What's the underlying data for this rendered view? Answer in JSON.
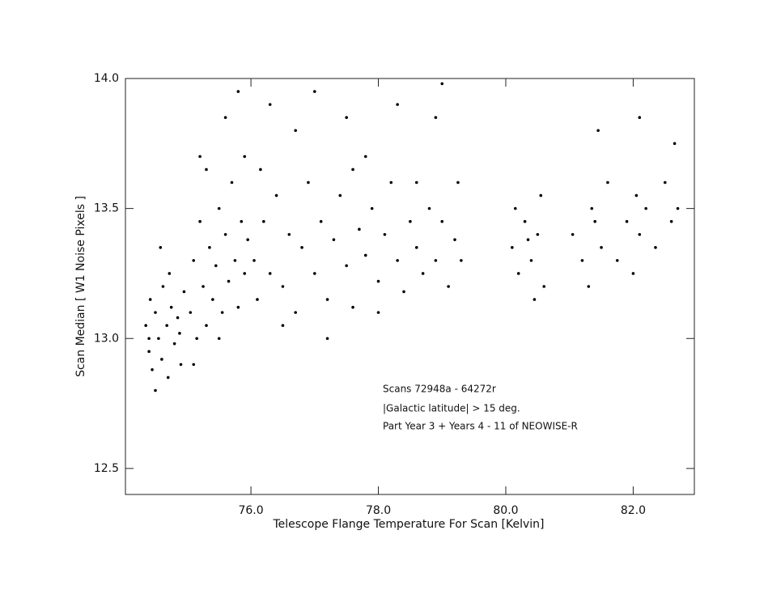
{
  "chart_data": {
    "type": "scatter",
    "x_label": "Telescope Flange Temperature For Scan [Kelvin]",
    "y_label": "Scan Median [ W1 Noise Pixels ]",
    "annotations": [
      "Scans 72948a - 64272r",
      "|Galactic latitude| > 15 deg.",
      "Part Year 3 + Years 4 - 11 of NEOWISE-R"
    ],
    "color": "#000000",
    "xlim": [
      74.03,
      82.96
    ],
    "ylim": [
      12.4,
      14.0
    ],
    "xticks": [
      {
        "value": 76,
        "label": "76.0"
      },
      {
        "value": 78,
        "label": "78.0"
      },
      {
        "value": 80,
        "label": "80.0"
      },
      {
        "value": 82,
        "label": "82.0"
      }
    ],
    "yticks": [
      {
        "value": 12.5,
        "label": "12.5"
      },
      {
        "value": 13,
        "label": "13.0"
      },
      {
        "value": 13.5,
        "label": "13.5"
      },
      {
        "value": 14,
        "label": "14.0"
      }
    ],
    "x": [
      74.35,
      74.4,
      74.42,
      74.45,
      74.5,
      74.55,
      74.6,
      74.62,
      74.68,
      74.7,
      74.75,
      74.8,
      74.85,
      74.9,
      74.95,
      74.5,
      74.58,
      74.72,
      74.88,
      74.4,
      75.05,
      75.1,
      75.15,
      75.2,
      75.25,
      75.3,
      75.35,
      75.4,
      75.45,
      75.5,
      75.55,
      75.6,
      75.65,
      75.7,
      75.75,
      75.8,
      75.85,
      75.9,
      75.95,
      75.1,
      75.3,
      75.6,
      75.8,
      75.2,
      75.5,
      75.9,
      76.05,
      76.1,
      76.2,
      76.3,
      76.4,
      76.5,
      76.6,
      76.7,
      76.8,
      76.9,
      77.0,
      77.1,
      77.2,
      77.3,
      77.4,
      77.5,
      77.6,
      77.7,
      77.8,
      77.9,
      78.0,
      78.1,
      78.2,
      78.3,
      78.4,
      78.5,
      78.6,
      78.7,
      78.8,
      78.9,
      79.0,
      79.1,
      79.2,
      79.3,
      76.3,
      76.7,
      77.0,
      77.5,
      77.8,
      78.3,
      78.9,
      79.0,
      76.5,
      77.2,
      78.0,
      76.15,
      77.6,
      78.6,
      79.25,
      80.1,
      80.2,
      80.3,
      80.4,
      80.5,
      80.6,
      80.15,
      80.45,
      80.55,
      80.35,
      81.05,
      81.2,
      81.35,
      81.4,
      81.5,
      81.6,
      81.75,
      81.9,
      82.05,
      82.1,
      82.2,
      82.35,
      82.5,
      82.6,
      82.7,
      81.45,
      82.1,
      82.65,
      81.3,
      82.0
    ],
    "values": [
      13.05,
      12.95,
      13.15,
      12.88,
      13.1,
      13.0,
      12.92,
      13.2,
      13.05,
      12.85,
      13.12,
      12.98,
      13.08,
      12.9,
      13.18,
      12.8,
      13.35,
      13.25,
      13.02,
      13.0,
      13.1,
      13.3,
      13.0,
      13.45,
      13.2,
      13.05,
      13.35,
      13.15,
      13.28,
      13.5,
      13.1,
      13.4,
      13.22,
      13.6,
      13.3,
      13.12,
      13.45,
      13.25,
      13.38,
      12.9,
      13.65,
      13.85,
      13.95,
      13.7,
      13.0,
      13.7,
      13.3,
      13.15,
      13.45,
      13.25,
      13.55,
      13.2,
      13.4,
      13.1,
      13.35,
      13.6,
      13.25,
      13.45,
      13.15,
      13.38,
      13.55,
      13.28,
      13.12,
      13.42,
      13.32,
      13.5,
      13.22,
      13.4,
      13.6,
      13.3,
      13.18,
      13.45,
      13.35,
      13.25,
      13.5,
      13.3,
      13.45,
      13.2,
      13.38,
      13.3,
      13.9,
      13.8,
      13.95,
      13.85,
      13.7,
      13.9,
      13.85,
      13.98,
      13.05,
      13.0,
      13.1,
      13.65,
      13.65,
      13.6,
      13.6,
      13.35,
      13.25,
      13.45,
      13.3,
      13.4,
      13.2,
      13.5,
      13.15,
      13.55,
      13.38,
      13.4,
      13.3,
      13.5,
      13.45,
      13.35,
      13.6,
      13.3,
      13.45,
      13.55,
      13.4,
      13.5,
      13.35,
      13.6,
      13.45,
      13.5,
      13.8,
      13.85,
      13.75,
      13.2,
      13.25
    ]
  }
}
